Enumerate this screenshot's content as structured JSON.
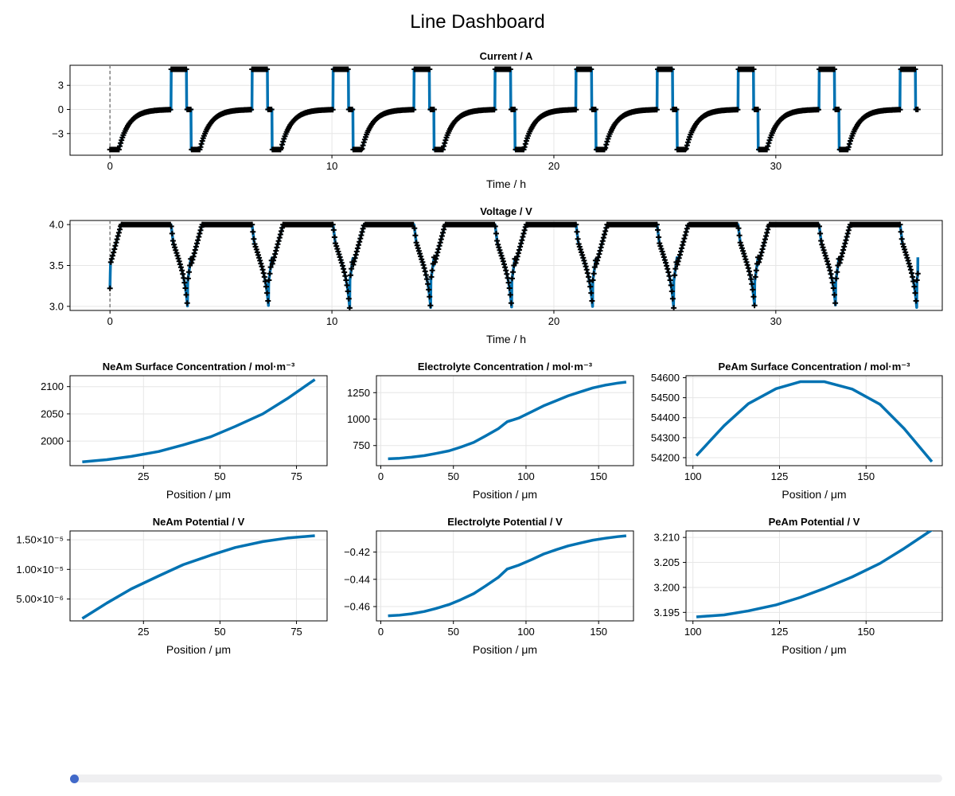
{
  "dashboard": {
    "title": "Line Dashboard"
  },
  "colors": {
    "line": "#0072b2",
    "marker": "#000000",
    "grid": "#e6e6e6",
    "slider_accent": "#4169c9",
    "slider_track": "#efeff1",
    "marker_line": "#808080"
  },
  "slider": {
    "value": 0,
    "min": 0,
    "max": 1
  },
  "chart_data": [
    {
      "id": "current",
      "type": "line",
      "title": "Current  /  A",
      "xlabel": "Time  /  h",
      "ylabel": "",
      "xlim": [
        -1.8,
        37.5
      ],
      "ylim": [
        -5.7,
        5.5
      ],
      "xticks": [
        0,
        10,
        20,
        30
      ],
      "yticks": [
        3,
        0,
        -3
      ],
      "ytick_labels": [
        "3",
        "0",
        "−3"
      ],
      "vline_x": 0,
      "signal": "current",
      "cycle_period_h": 3.65,
      "cycles": 10,
      "end_time_h": 36.4,
      "levels_A": {
        "discharge": -5,
        "rest": 0,
        "charge": 5
      },
      "markers": true
    },
    {
      "id": "voltage",
      "type": "line",
      "title": "Voltage  /  V",
      "xlabel": "Time  /  h",
      "ylabel": "",
      "xlim": [
        -1.8,
        37.5
      ],
      "ylim": [
        2.95,
        4.05
      ],
      "xticks": [
        0,
        10,
        20,
        30
      ],
      "yticks": [
        4.0,
        3.5,
        3.0
      ],
      "ytick_labels": [
        "4.0",
        "3.5",
        "3.0"
      ],
      "vline_x": 0,
      "signal": "voltage",
      "cycle_period_h": 3.65,
      "cycles": 10,
      "end_time_h": 36.4,
      "levels_V": {
        "max": 4.0,
        "min_discharge": 3.0,
        "end": 3.6
      },
      "markers": true
    },
    {
      "id": "neam-surface-concentration",
      "type": "line",
      "title": "NeAm Surface Concentration  /  mol·m⁻³",
      "xlabel": "Position  /  μm",
      "xlim": [
        1,
        85
      ],
      "ylim": [
        1955,
        2120
      ],
      "xticks": [
        25,
        50,
        75
      ],
      "yticks": [
        2000,
        2050,
        2100
      ],
      "ytick_labels": [
        "2000",
        "2050",
        "2100"
      ],
      "x": [
        5,
        13,
        21,
        30,
        38,
        47,
        55,
        64,
        72,
        81
      ],
      "y": [
        1962,
        1966,
        1972,
        1981,
        1993,
        2008,
        2027,
        2050,
        2078,
        2113
      ]
    },
    {
      "id": "electrolyte-concentration",
      "type": "line",
      "title": "Electrolyte Concentration  /  mol·m⁻³",
      "xlabel": "Position  /  μm",
      "xlim": [
        -3,
        174
      ],
      "ylim": [
        560,
        1410
      ],
      "xticks": [
        0,
        50,
        100,
        150
      ],
      "yticks": [
        750,
        1000,
        1250
      ],
      "ytick_labels": [
        "750",
        "1000",
        "1250"
      ],
      "x": [
        5,
        13,
        21,
        30,
        38,
        47,
        55,
        64,
        72,
        81,
        87,
        95,
        104,
        112,
        121,
        129,
        138,
        146,
        155,
        163,
        169
      ],
      "y": [
        625,
        630,
        640,
        655,
        675,
        700,
        735,
        780,
        840,
        910,
        975,
        1010,
        1070,
        1125,
        1175,
        1220,
        1260,
        1295,
        1322,
        1340,
        1350
      ]
    },
    {
      "id": "peam-surface-concentration",
      "type": "line",
      "title": "PeAm Surface Concentration  /  mol·m⁻³",
      "xlabel": "Position  /  μm",
      "xlim": [
        98,
        172
      ],
      "ylim": [
        54160,
        54610
      ],
      "xticks": [
        100,
        125,
        150
      ],
      "yticks": [
        54200,
        54300,
        54400,
        54500,
        54600
      ],
      "ytick_labels": [
        "54200",
        "54300",
        "54400",
        "54500",
        "54600"
      ],
      "x": [
        101,
        109,
        116,
        124,
        131,
        138,
        146,
        154,
        161,
        169
      ],
      "y": [
        54210,
        54360,
        54470,
        54545,
        54580,
        54580,
        54543,
        54467,
        54345,
        54180
      ]
    },
    {
      "id": "neam-potential",
      "type": "line",
      "title": "NeAm Potential  /  V",
      "xlabel": "Position  /  μm",
      "xlim": [
        1,
        85
      ],
      "ylim": [
        1.3e-06,
        1.65e-05
      ],
      "xticks": [
        25,
        50,
        75
      ],
      "yticks": [
        1.5e-05,
        1e-05,
        5e-06
      ],
      "ytick_labels": [
        "1.50×10⁻⁵",
        "1.00×10⁻⁵",
        "5.00×10⁻⁶"
      ],
      "x": [
        5,
        13,
        21,
        30,
        38,
        47,
        55,
        64,
        72,
        81
      ],
      "y": [
        1.7e-06,
        4.3e-06,
        6.7e-06,
        8.9e-06,
        1.08e-05,
        1.24e-05,
        1.37e-05,
        1.47e-05,
        1.53e-05,
        1.57e-05
      ]
    },
    {
      "id": "electrolyte-potential",
      "type": "line",
      "title": "Electrolyte Potential  /  V",
      "xlabel": "Position  /  μm",
      "xlim": [
        -3,
        174
      ],
      "ylim": [
        -0.4705,
        -0.4045
      ],
      "xticks": [
        0,
        50,
        100,
        150
      ],
      "yticks": [
        -0.42,
        -0.44,
        -0.46
      ],
      "ytick_labels": [
        "−0.42",
        "−0.44",
        "−0.46"
      ],
      "x": [
        5,
        13,
        21,
        30,
        38,
        47,
        55,
        64,
        72,
        81,
        87,
        95,
        104,
        112,
        121,
        129,
        138,
        146,
        155,
        163,
        169
      ],
      "y": [
        -0.4668,
        -0.4663,
        -0.4653,
        -0.4636,
        -0.4614,
        -0.4585,
        -0.455,
        -0.4505,
        -0.445,
        -0.4385,
        -0.4325,
        -0.4296,
        -0.4255,
        -0.4215,
        -0.4182,
        -0.4155,
        -0.4132,
        -0.4113,
        -0.4098,
        -0.4087,
        -0.4081
      ]
    },
    {
      "id": "peam-potential",
      "type": "line",
      "title": "PeAm Potential  /  V",
      "xlabel": "Position  /  μm",
      "xlim": [
        98,
        172
      ],
      "ylim": [
        3.1933,
        3.2113
      ],
      "xticks": [
        100,
        125,
        150
      ],
      "yticks": [
        3.21,
        3.205,
        3.2,
        3.195
      ],
      "ytick_labels": [
        "3.210",
        "3.205",
        "3.200",
        "3.195"
      ],
      "x": [
        101,
        109,
        116,
        124,
        131,
        138,
        146,
        154,
        161,
        169
      ],
      "y": [
        3.1941,
        3.1945,
        3.1953,
        3.1965,
        3.198,
        3.1998,
        3.2021,
        3.2048,
        3.2078,
        3.2115
      ]
    }
  ]
}
